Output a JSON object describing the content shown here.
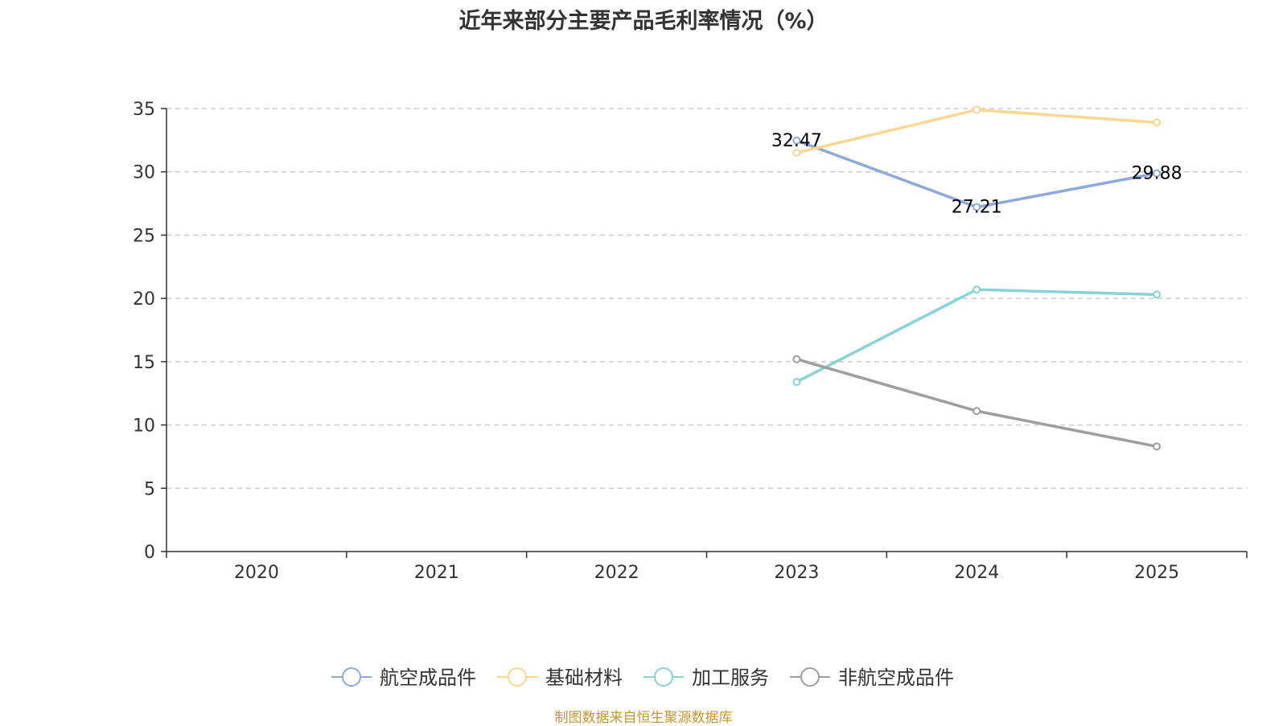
{
  "chart_data": {
    "type": "line",
    "title": "近年来部分主要产品毛利率情况（%）",
    "categories": [
      "2020",
      "2021",
      "2022",
      "2023",
      "2024",
      "2025"
    ],
    "ylim": [
      0,
      35
    ],
    "yticks": [
      0,
      5,
      10,
      15,
      20,
      25,
      30,
      35
    ],
    "grid": true,
    "legend_position": "bottom",
    "series": [
      {
        "name": "航空成品件",
        "color": "#8eaad8",
        "values": [
          null,
          null,
          null,
          32.47,
          27.21,
          29.88
        ],
        "labels": [
          "",
          "",
          "",
          "32.47",
          "27.21",
          "29.88"
        ]
      },
      {
        "name": "基础材料",
        "color": "#fbd78f",
        "values": [
          null,
          null,
          null,
          31.5,
          34.9,
          33.9
        ]
      },
      {
        "name": "加工服务",
        "color": "#86d3d8",
        "values": [
          null,
          null,
          null,
          13.4,
          20.7,
          20.3
        ]
      },
      {
        "name": "非航空成品件",
        "color": "#9e9e9e",
        "values": [
          null,
          null,
          null,
          15.2,
          11.1,
          8.3
        ]
      }
    ]
  },
  "source_note": "制图数据来自恒生聚源数据库"
}
